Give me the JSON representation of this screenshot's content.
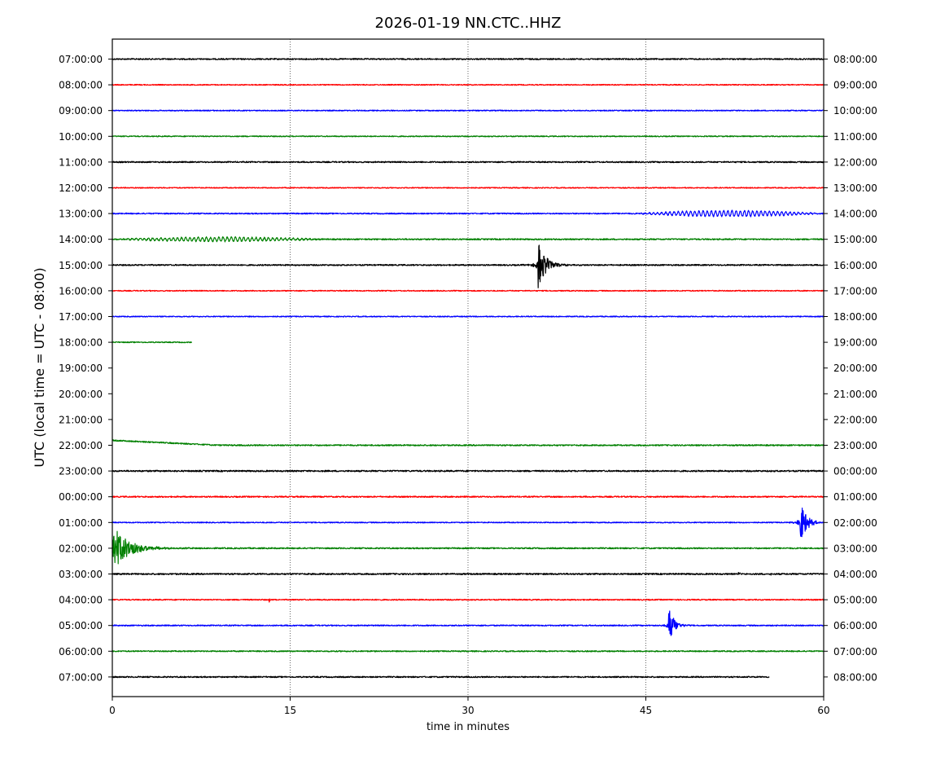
{
  "chart_data": {
    "type": "line",
    "title": "2026-01-19 NN.CTC..HHZ",
    "xlabel": "time in minutes",
    "ylabel": "UTC (local time = UTC - 08:00)",
    "xlim": [
      0,
      60
    ],
    "x_ticks": [
      "0",
      "15",
      "30",
      "45",
      "60"
    ],
    "x_tick_values": [
      0,
      15,
      30,
      45,
      60
    ],
    "grid": "vertical dotted lines at 15, 30, 45",
    "line_colors": [
      "#000000",
      "#ff0000",
      "#0000ff",
      "#008000"
    ],
    "rows": [
      {
        "left": "07:00:00",
        "right": "08:00:00",
        "color": "#000000",
        "start_min": 0,
        "end_min": 60,
        "noise": 0.8,
        "events": []
      },
      {
        "left": "08:00:00",
        "right": "09:00:00",
        "color": "#ff0000",
        "start_min": 0,
        "end_min": 60,
        "noise": 0.6,
        "events": []
      },
      {
        "left": "09:00:00",
        "right": "10:00:00",
        "color": "#0000ff",
        "start_min": 0,
        "end_min": 60,
        "noise": 0.6,
        "events": []
      },
      {
        "left": "10:00:00",
        "right": "11:00:00",
        "color": "#008000",
        "start_min": 0,
        "end_min": 60,
        "noise": 0.6,
        "events": []
      },
      {
        "left": "11:00:00",
        "right": "12:00:00",
        "color": "#000000",
        "start_min": 0,
        "end_min": 60,
        "noise": 0.8,
        "events": []
      },
      {
        "left": "12:00:00",
        "right": "13:00:00",
        "color": "#ff0000",
        "start_min": 0,
        "end_min": 60,
        "noise": 0.6,
        "events": []
      },
      {
        "left": "13:00:00",
        "right": "14:00:00",
        "color": "#0000ff",
        "start_min": 0,
        "end_min": 60,
        "noise": 0.7,
        "events": [
          {
            "at_min": 44,
            "amp": 3.5,
            "duration_min": 16,
            "kind": "wave"
          }
        ]
      },
      {
        "left": "14:00:00",
        "right": "15:00:00",
        "color": "#008000",
        "start_min": 0,
        "end_min": 60,
        "noise": 0.8,
        "events": [
          {
            "at_min": 0,
            "amp": 2.5,
            "duration_min": 18,
            "kind": "wave"
          }
        ]
      },
      {
        "left": "15:00:00",
        "right": "16:00:00",
        "color": "#000000",
        "start_min": 0,
        "end_min": 60,
        "noise": 0.8,
        "events": [
          {
            "at_min": 35.9,
            "amp": 30,
            "duration_min": 2.5,
            "kind": "quake"
          }
        ]
      },
      {
        "left": "16:00:00",
        "right": "17:00:00",
        "color": "#ff0000",
        "start_min": 0,
        "end_min": 60,
        "noise": 0.6,
        "events": []
      },
      {
        "left": "17:00:00",
        "right": "18:00:00",
        "color": "#0000ff",
        "start_min": 0,
        "end_min": 60,
        "noise": 0.6,
        "events": []
      },
      {
        "left": "18:00:00",
        "right": "19:00:00",
        "color": "#008000",
        "start_min": 0,
        "end_min": 6.7,
        "noise": 0.6,
        "events": []
      },
      {
        "left": "19:00:00",
        "right": "20:00:00",
        "color": "#000000",
        "start_min": 0,
        "end_min": 0,
        "noise": 0,
        "events": []
      },
      {
        "left": "20:00:00",
        "right": "21:00:00",
        "color": "#ff0000",
        "start_min": 0,
        "end_min": 0,
        "noise": 0,
        "events": []
      },
      {
        "left": "21:00:00",
        "right": "22:00:00",
        "color": "#0000ff",
        "start_min": 0,
        "end_min": 0,
        "noise": 0,
        "events": []
      },
      {
        "left": "22:00:00",
        "right": "23:00:00",
        "color": "#008000",
        "start_min": 0,
        "end_min": 60,
        "noise": 0.8,
        "events": [
          {
            "at_min": 0,
            "amp": -6,
            "duration_min": 9,
            "kind": "drift"
          }
        ]
      },
      {
        "left": "23:00:00",
        "right": "00:00:00",
        "color": "#000000",
        "start_min": 0,
        "end_min": 60,
        "noise": 0.9,
        "events": []
      },
      {
        "left": "00:00:00",
        "right": "01:00:00",
        "color": "#ff0000",
        "start_min": 0,
        "end_min": 60,
        "noise": 0.8,
        "events": []
      },
      {
        "left": "01:00:00",
        "right": "02:00:00",
        "color": "#0000ff",
        "start_min": 0,
        "end_min": 60,
        "noise": 0.6,
        "events": [
          {
            "at_min": 58,
            "amp": 28,
            "duration_min": 2,
            "kind": "quake"
          }
        ]
      },
      {
        "left": "02:00:00",
        "right": "03:00:00",
        "color": "#008000",
        "start_min": 0,
        "end_min": 60,
        "noise": 0.8,
        "events": [
          {
            "at_min": 0,
            "amp": 28,
            "duration_min": 7,
            "kind": "decay"
          }
        ]
      },
      {
        "left": "03:00:00",
        "right": "04:00:00",
        "color": "#000000",
        "start_min": 0,
        "end_min": 60,
        "noise": 0.9,
        "events": [
          {
            "at_min": 52.8,
            "amp": 4,
            "duration_min": 0.4,
            "kind": "quake"
          },
          {
            "at_min": 54.3,
            "amp": 3,
            "duration_min": 0.3,
            "kind": "quake"
          },
          {
            "at_min": 55.5,
            "amp": 3,
            "duration_min": 0.3,
            "kind": "quake"
          }
        ]
      },
      {
        "left": "04:00:00",
        "right": "05:00:00",
        "color": "#ff0000",
        "start_min": 0,
        "end_min": 60,
        "noise": 0.7,
        "events": [
          {
            "at_min": 13.2,
            "amp": 4,
            "duration_min": 0.4,
            "kind": "quake"
          }
        ]
      },
      {
        "left": "05:00:00",
        "right": "06:00:00",
        "color": "#0000ff",
        "start_min": 0,
        "end_min": 60,
        "noise": 0.7,
        "events": [
          {
            "at_min": 46.9,
            "amp": 24,
            "duration_min": 1.8,
            "kind": "quake"
          }
        ]
      },
      {
        "left": "06:00:00",
        "right": "07:00:00",
        "color": "#008000",
        "start_min": 0,
        "end_min": 60,
        "noise": 0.7,
        "events": []
      },
      {
        "left": "07:00:00",
        "right": "08:00:00",
        "color": "#000000",
        "start_min": 0,
        "end_min": 55.4,
        "noise": 0.8,
        "events": []
      }
    ]
  }
}
